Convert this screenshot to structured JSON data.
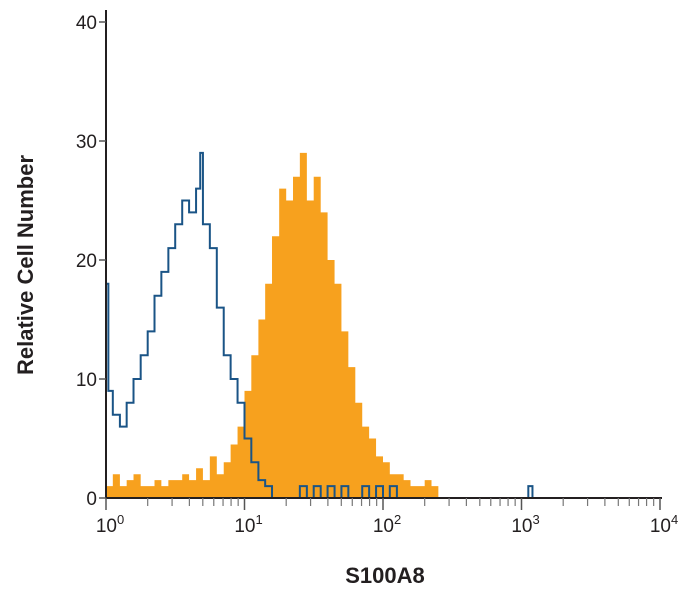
{
  "chart_data": {
    "type": "area",
    "title": "",
    "xlabel": "S100A8",
    "ylabel": "Relative Cell Number",
    "xscale": "log",
    "xlim": [
      1,
      10000
    ],
    "ylim": [
      0,
      40
    ],
    "grid": false,
    "x_tick_labels": [
      {
        "base": "10",
        "exp": "0",
        "value": 1
      },
      {
        "base": "10",
        "exp": "1",
        "value": 10
      },
      {
        "base": "10",
        "exp": "2",
        "value": 100
      },
      {
        "base": "10",
        "exp": "3",
        "value": 1000
      },
      {
        "base": "10",
        "exp": "4",
        "value": 10000
      }
    ],
    "y_ticks": [
      0,
      10,
      20,
      30,
      40
    ],
    "series": [
      {
        "style": "filled",
        "color": "#f7a11e",
        "x": [
          1,
          1.12,
          1.26,
          1.41,
          1.58,
          1.78,
          2,
          2.24,
          2.51,
          2.82,
          3.16,
          3.55,
          3.98,
          4.47,
          5.01,
          5.62,
          6.31,
          7.08,
          7.94,
          8.91,
          10,
          11.2,
          12.6,
          14.1,
          15.8,
          17.8,
          20,
          22.4,
          25.1,
          28.2,
          31.6,
          35.5,
          39.8,
          44.7,
          50.1,
          56.2,
          63.1,
          70.8,
          79.4,
          89.1,
          100,
          112,
          126,
          141,
          158,
          178,
          200,
          224,
          251
        ],
        "y": [
          1,
          2,
          1,
          1.5,
          2,
          1,
          1,
          1.5,
          1,
          1.5,
          1.5,
          2,
          1.5,
          2.5,
          1.5,
          3.5,
          2,
          3,
          4.5,
          6,
          9,
          12,
          15,
          18,
          22,
          26,
          25,
          27,
          29,
          25,
          27,
          24,
          20,
          18,
          14,
          11,
          8,
          6,
          5,
          3.5,
          3,
          2,
          2,
          1.5,
          1,
          1,
          1.5,
          1,
          0
        ]
      },
      {
        "style": "outline",
        "color": "#1a5486",
        "x": [
          1,
          1.04,
          1.12,
          1.26,
          1.41,
          1.58,
          1.78,
          2,
          2.24,
          2.51,
          2.82,
          3.16,
          3.55,
          3.98,
          4.47,
          4.79,
          5.01,
          5.62,
          6.31,
          7.08,
          7.94,
          8.91,
          10,
          11.2,
          12.6,
          14.1,
          15.8,
          17.8,
          20,
          22.4,
          25.1,
          28.2,
          31.6,
          35.5,
          39.8,
          44.7,
          50.1,
          56.2,
          63.1,
          70.8,
          79.4,
          89.1,
          100,
          112,
          126,
          141,
          158,
          1000,
          1120,
          1200,
          10000
        ],
        "y": [
          18,
          9,
          7,
          6,
          8,
          10,
          12,
          14,
          17,
          19,
          21,
          23,
          25,
          24,
          26,
          29,
          23,
          21,
          16,
          12,
          10,
          8,
          5,
          3,
          1.5,
          1,
          0,
          0,
          0,
          0,
          1,
          0,
          1,
          0,
          1,
          0,
          1,
          0,
          0,
          1,
          0,
          1,
          0,
          1,
          0,
          0,
          0,
          0,
          1,
          0,
          0
        ]
      }
    ]
  }
}
